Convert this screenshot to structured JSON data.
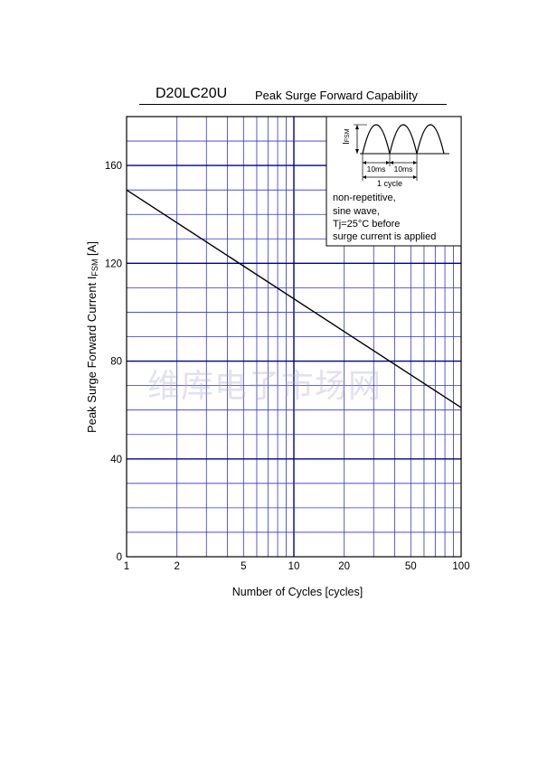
{
  "title": {
    "part_number": "D20LC20U",
    "subtitle": "Peak Surge Forward Capability"
  },
  "watermark_text": "维库电子市场网",
  "inset": {
    "ylabel_main": "I",
    "ylabel_sub": "FSM",
    "period_label_1": "10ms",
    "period_label_2": "10ms",
    "cycle_label": "1 cycle",
    "notes": [
      "non-repetitive,",
      "sine wave,",
      "Tj=25°C before",
      "surge current is applied"
    ]
  },
  "chart_data": {
    "type": "line",
    "title": "Peak Surge Forward Capability",
    "xlabel": "Number of Cycles  [cycles]",
    "ylabel_main": "Peak Surge Forward Current  I",
    "ylabel_sub": "FSM",
    "ylabel_unit": " [A]",
    "xscale": "log",
    "xlim": [
      1,
      100
    ],
    "ylim": [
      0,
      180
    ],
    "xticks": [
      1,
      2,
      5,
      10,
      20,
      50,
      100
    ],
    "xtick_labels": [
      "1",
      "2",
      "5",
      "10",
      "20",
      "50",
      "100"
    ],
    "yticks": [
      0,
      40,
      80,
      120,
      160
    ],
    "ytick_labels": [
      "0",
      "40",
      "80",
      "120",
      "160"
    ],
    "grid": true,
    "colors": {
      "grid": "#3333cc",
      "major_grid": "#000088",
      "line": "#000000"
    },
    "series": [
      {
        "x": [
          1,
          100
        ],
        "y": [
          150,
          61
        ]
      }
    ]
  }
}
